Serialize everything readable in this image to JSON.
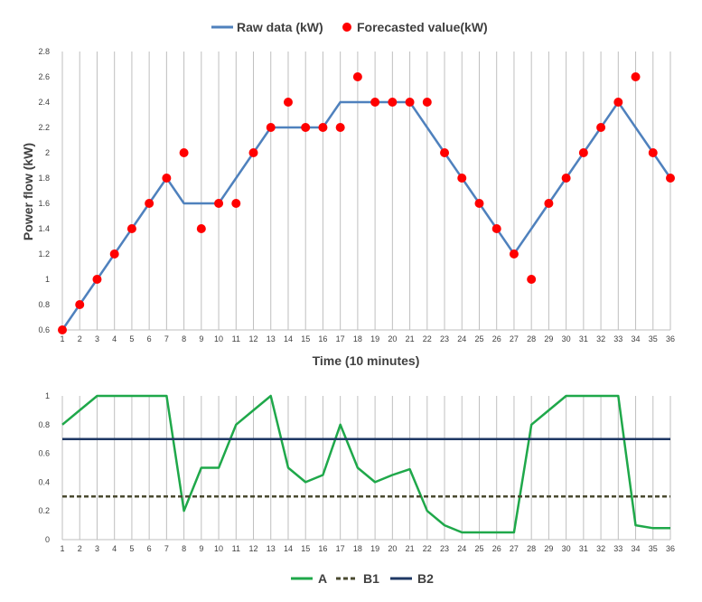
{
  "chart_data": [
    {
      "type": "line",
      "title": "",
      "xlabel": "Time (10 minutes)",
      "ylabel": "Power flow (kW)",
      "ylim": [
        0.6,
        2.8
      ],
      "yticks": [
        0.6,
        0.8,
        1,
        1.2,
        1.4,
        1.6,
        1.8,
        2,
        2.2,
        2.4,
        2.6,
        2.8
      ],
      "x": [
        1,
        2,
        3,
        4,
        5,
        6,
        7,
        8,
        9,
        10,
        11,
        12,
        13,
        14,
        15,
        16,
        17,
        18,
        19,
        20,
        21,
        22,
        23,
        24,
        25,
        26,
        27,
        28,
        29,
        30,
        31,
        32,
        33,
        34,
        35,
        36
      ],
      "grid": "vertical",
      "legend": "top",
      "series": [
        {
          "name": "Raw data (kW)",
          "kind": "line",
          "color": "#4f81bd",
          "values": [
            0.6,
            0.8,
            1.0,
            1.2,
            1.4,
            1.6,
            1.8,
            1.6,
            1.6,
            1.6,
            1.8,
            2.0,
            2.2,
            2.2,
            2.2,
            2.2,
            2.4,
            2.4,
            2.4,
            2.4,
            2.4,
            2.2,
            2.0,
            1.8,
            1.6,
            1.4,
            1.2,
            1.4,
            1.6,
            1.8,
            2.0,
            2.2,
            2.4,
            2.2,
            2.0,
            1.8
          ]
        },
        {
          "name": "Forecasted value(kW)",
          "kind": "scatter",
          "color": "#ff0000",
          "values": [
            0.6,
            0.8,
            1.0,
            1.2,
            1.4,
            1.6,
            1.8,
            2.0,
            1.4,
            1.6,
            1.6,
            2.0,
            2.2,
            2.4,
            2.2,
            2.2,
            2.2,
            2.6,
            2.4,
            2.4,
            2.4,
            2.4,
            2.0,
            1.8,
            1.6,
            1.4,
            1.2,
            1.0,
            1.6,
            1.8,
            2.0,
            2.2,
            2.4,
            2.6,
            2.0,
            1.8
          ]
        }
      ]
    },
    {
      "type": "line",
      "title": "",
      "xlabel": "",
      "ylabel": "",
      "ylim": [
        0,
        1
      ],
      "yticks": [
        0,
        0.2,
        0.4,
        0.6,
        0.8,
        1
      ],
      "x": [
        1,
        2,
        3,
        4,
        5,
        6,
        7,
        8,
        9,
        10,
        11,
        12,
        13,
        14,
        15,
        16,
        17,
        18,
        19,
        20,
        21,
        22,
        23,
        24,
        25,
        26,
        27,
        28,
        29,
        30,
        31,
        32,
        33,
        34,
        35,
        36
      ],
      "grid": "vertical",
      "legend": "bottom",
      "series": [
        {
          "name": "A",
          "color": "#1fa84a",
          "dash": "solid",
          "values": [
            0.8,
            0.9,
            1,
            1,
            1,
            1,
            1,
            0.2,
            0.5,
            0.5,
            0.8,
            0.9,
            1,
            0.5,
            0.4,
            0.45,
            0.8,
            0.5,
            0.4,
            0.45,
            0.49,
            0.2,
            0.1,
            0.05,
            0.05,
            0.05,
            0.05,
            0.8,
            0.9,
            1,
            1,
            1,
            1,
            0.1,
            0.08,
            0.08
          ]
        },
        {
          "name": "B1",
          "color": "#4a4a30",
          "dash": "dashed",
          "values": [
            0.3,
            0.3,
            0.3,
            0.3,
            0.3,
            0.3,
            0.3,
            0.3,
            0.3,
            0.3,
            0.3,
            0.3,
            0.3,
            0.3,
            0.3,
            0.3,
            0.3,
            0.3,
            0.3,
            0.3,
            0.3,
            0.3,
            0.3,
            0.3,
            0.3,
            0.3,
            0.3,
            0.3,
            0.3,
            0.3,
            0.3,
            0.3,
            0.3,
            0.3,
            0.3,
            0.3
          ]
        },
        {
          "name": "B2",
          "color": "#1f3864",
          "dash": "solid",
          "values": [
            0.7,
            0.7,
            0.7,
            0.7,
            0.7,
            0.7,
            0.7,
            0.7,
            0.7,
            0.7,
            0.7,
            0.7,
            0.7,
            0.7,
            0.7,
            0.7,
            0.7,
            0.7,
            0.7,
            0.7,
            0.7,
            0.7,
            0.7,
            0.7,
            0.7,
            0.7,
            0.7,
            0.7,
            0.7,
            0.7,
            0.7,
            0.7,
            0.7,
            0.7,
            0.7,
            0.7
          ]
        }
      ]
    }
  ]
}
